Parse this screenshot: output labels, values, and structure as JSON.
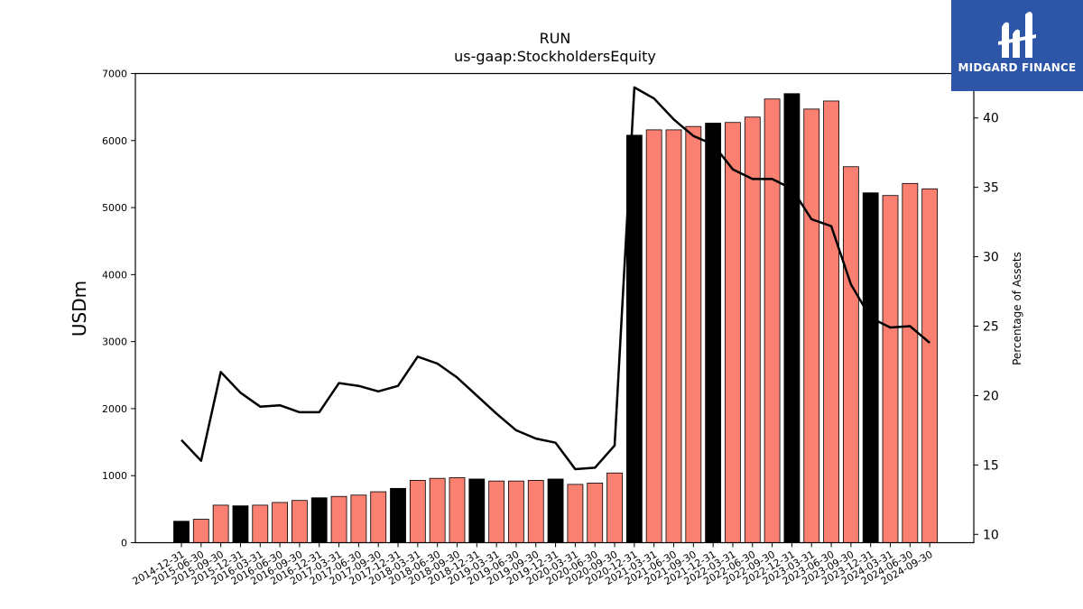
{
  "chart_data": {
    "type": "bar",
    "title": "RUN",
    "subtitle": "us-gaap:StockholdersEquity",
    "ylabel": "USDm",
    "y2label": "Percentage of Assets",
    "ylim": [
      0,
      7000
    ],
    "y2lim": [
      9.4,
      43.2
    ],
    "yticks": [
      "0",
      "1000",
      "2000",
      "3000",
      "4000",
      "5000",
      "6000",
      "7000"
    ],
    "y2ticks": [
      "10",
      "15",
      "20",
      "25",
      "30",
      "35",
      "40"
    ],
    "grid": false,
    "colors": {
      "annual": "#000000",
      "quarterly": "#fa8072",
      "line": "#000000"
    },
    "categories": [
      "2014-12-31",
      "2015-06-30",
      "2015-09-30",
      "2015-12-31",
      "2016-03-31",
      "2016-06-30",
      "2016-09-30",
      "2016-12-31",
      "2017-03-31",
      "2017-06-30",
      "2017-09-30",
      "2017-12-31",
      "2018-03-31",
      "2018-06-30",
      "2018-09-30",
      "2018-12-31",
      "2019-03-31",
      "2019-06-30",
      "2019-09-30",
      "2019-12-31",
      "2020-03-31",
      "2020-06-30",
      "2020-09-30",
      "2020-12-31",
      "2021-03-31",
      "2021-06-30",
      "2021-09-30",
      "2021-12-31",
      "2022-03-31",
      "2022-06-30",
      "2022-09-30",
      "2022-12-31",
      "2023-03-31",
      "2023-06-30",
      "2023-09-30",
      "2023-12-31",
      "2024-03-31",
      "2024-06-30",
      "2024-09-30"
    ],
    "series": [
      {
        "type": "bar",
        "values": [
          320,
          350,
          560,
          550,
          560,
          600,
          630,
          670,
          690,
          710,
          760,
          810,
          930,
          960,
          970,
          950,
          920,
          920,
          930,
          950,
          870,
          890,
          1040,
          6080,
          6160,
          6160,
          6210,
          6260,
          6270,
          6350,
          6620,
          6700,
          6470,
          6590,
          5610,
          5220,
          5180,
          5360,
          5280
        ],
        "annual": [
          true,
          false,
          false,
          true,
          false,
          false,
          false,
          true,
          false,
          false,
          false,
          true,
          false,
          false,
          false,
          true,
          false,
          false,
          false,
          true,
          false,
          false,
          false,
          true,
          false,
          false,
          false,
          true,
          false,
          false,
          false,
          true,
          false,
          false,
          false,
          true,
          false,
          false,
          false
        ]
      },
      {
        "type": "line",
        "values": [
          16.8,
          15.3,
          21.7,
          20.2,
          19.2,
          19.3,
          18.8,
          18.8,
          20.9,
          20.7,
          20.3,
          20.7,
          22.8,
          22.3,
          21.3,
          20.0,
          18.7,
          17.5,
          16.9,
          16.6,
          14.7,
          14.8,
          16.4,
          42.2,
          41.4,
          39.9,
          38.7,
          38.1,
          36.3,
          35.6,
          35.6,
          34.9,
          32.7,
          32.2,
          28.0,
          25.6,
          24.9,
          25.0,
          23.8
        ]
      }
    ]
  },
  "logo": {
    "text": "MIDGARD FINANCE"
  }
}
